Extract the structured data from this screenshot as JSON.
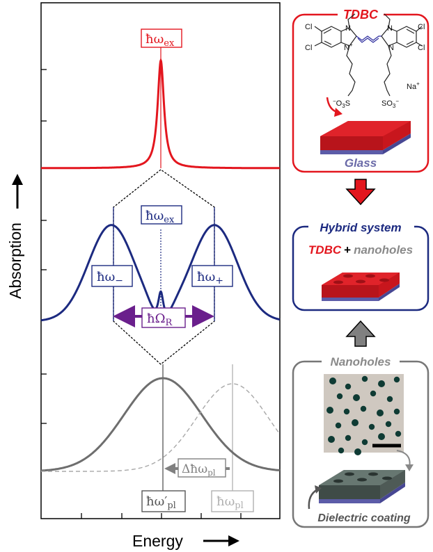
{
  "colors": {
    "red": "#e3161e",
    "navy": "#1c2a80",
    "purple": "#6a1f8c",
    "gray": "#6e6e6e",
    "lightgray": "#a8a8a8",
    "arrow_gray": "#808080"
  },
  "axes": {
    "xlabel": "Energy",
    "ylabel": "Absorption"
  },
  "labels": {
    "omega_ex_top": "ħω",
    "omega_ex_top_sub": "ex",
    "omega_ex_mid": "ħω",
    "omega_ex_mid_sub": "ex",
    "omega_minus": "ħω",
    "omega_minus_sub": "−",
    "omega_plus": "ħω",
    "omega_plus_sub": "+",
    "rabi": "ħΩ",
    "rabi_sub": "R",
    "delta_pl": "Δħω",
    "delta_pl_sub": "pl",
    "omega_pl_prime": "ħω′",
    "omega_pl_prime_sub": "pl",
    "omega_pl": "ħω",
    "omega_pl_sub": "pl"
  },
  "panels": {
    "tdbc": {
      "title": "TDBC",
      "atoms": {
        "cl1": "Cl",
        "cl2": "Cl",
        "cl3": "Cl",
        "cl4": "Cl",
        "n1": "N",
        "n2": "N",
        "n3": "N",
        "n4": "N",
        "na": "Na",
        "na_sup": "+",
        "so3_left": "O",
        "so3_left_sub": "3",
        "so3_left_prefix": "−",
        "so3_left_s": "S",
        "so3_right": "SO",
        "so3_right_sub": "3",
        "so3_right_sup": "−",
        "n_plus": "+"
      },
      "caption": "Glass"
    },
    "hybrid": {
      "title": "Hybrid system",
      "tdbc_word": "TDBC",
      "plus": "+",
      "nanoholes_word": "nanoholes"
    },
    "nanoholes": {
      "title": "Nanoholes",
      "caption": "Dielectric coating"
    }
  }
}
